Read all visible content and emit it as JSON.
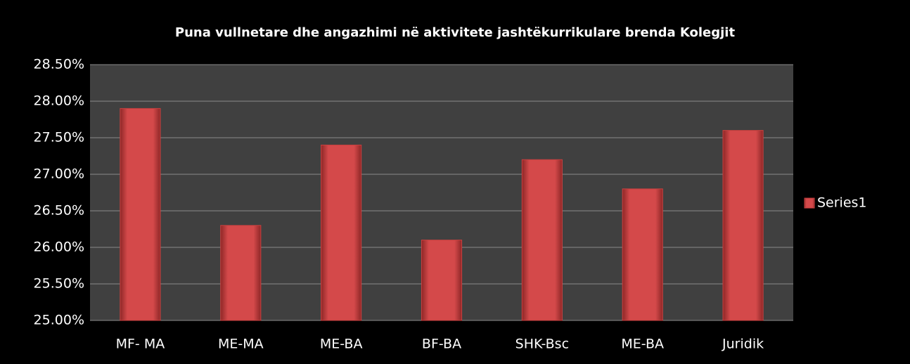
{
  "chart_data": {
    "type": "bar",
    "title": "Puna vullnetare dhe angazhimi në aktivitete jashtëkurrikulare brenda Kolegjit",
    "categories": [
      "MF- MA",
      "ME-MA",
      "ME-BA",
      "BF-BA",
      "SHK-Bsc",
      "ME-BA",
      "Juridik"
    ],
    "series": [
      {
        "name": "Series1",
        "color": "#c9403f",
        "values": [
          27.9,
          26.3,
          27.4,
          26.1,
          27.2,
          26.8,
          27.6
        ]
      }
    ],
    "ylim": [
      25,
      28.5
    ],
    "yticks": [
      {
        "value": 25,
        "label": "25.00%"
      },
      {
        "value": 25.5,
        "label": "25.50%"
      },
      {
        "value": 26,
        "label": "26.00%"
      },
      {
        "value": 26.5,
        "label": "26.50%"
      },
      {
        "value": 27,
        "label": "27.00%"
      },
      {
        "value": 27.5,
        "label": "27.50%"
      },
      {
        "value": 28,
        "label": "28.00%"
      },
      {
        "value": 28.5,
        "label": "28.50%"
      }
    ],
    "grid": true,
    "legend": "right"
  }
}
